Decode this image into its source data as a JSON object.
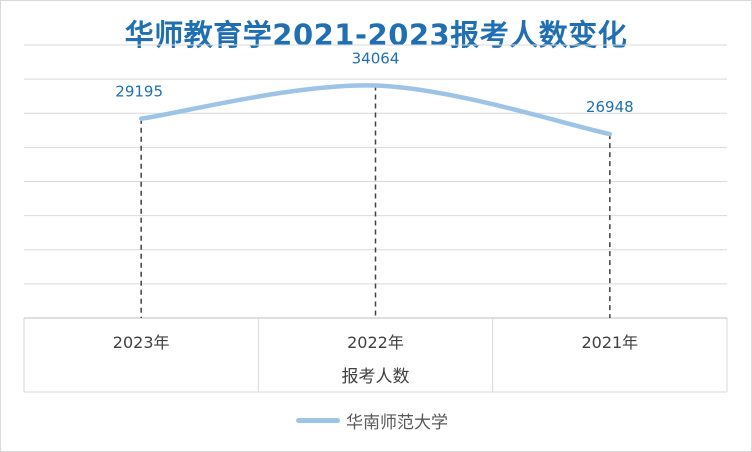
{
  "chart_data": {
    "type": "line",
    "title": "华师教育学2021-2023报考人数变化",
    "categories": [
      "2023年",
      "2022年",
      "2021年"
    ],
    "series": [
      {
        "name": "华南师范大学",
        "values": [
          29195,
          34064,
          26948
        ],
        "color": "#9dc3e6"
      }
    ],
    "xlabel": "报考人数",
    "ylabel": "",
    "ylim": [
      0,
      40000
    ],
    "grid": true,
    "smooth": true,
    "drop_lines": true,
    "data_labels": [
      "29195",
      "34064",
      "26948"
    ],
    "legend_position": "bottom",
    "colors": {
      "title": "#1f6fb2",
      "line": "#9dc3e6",
      "data_label": "#1f6fb2",
      "grid": "#d9d9d9"
    }
  }
}
